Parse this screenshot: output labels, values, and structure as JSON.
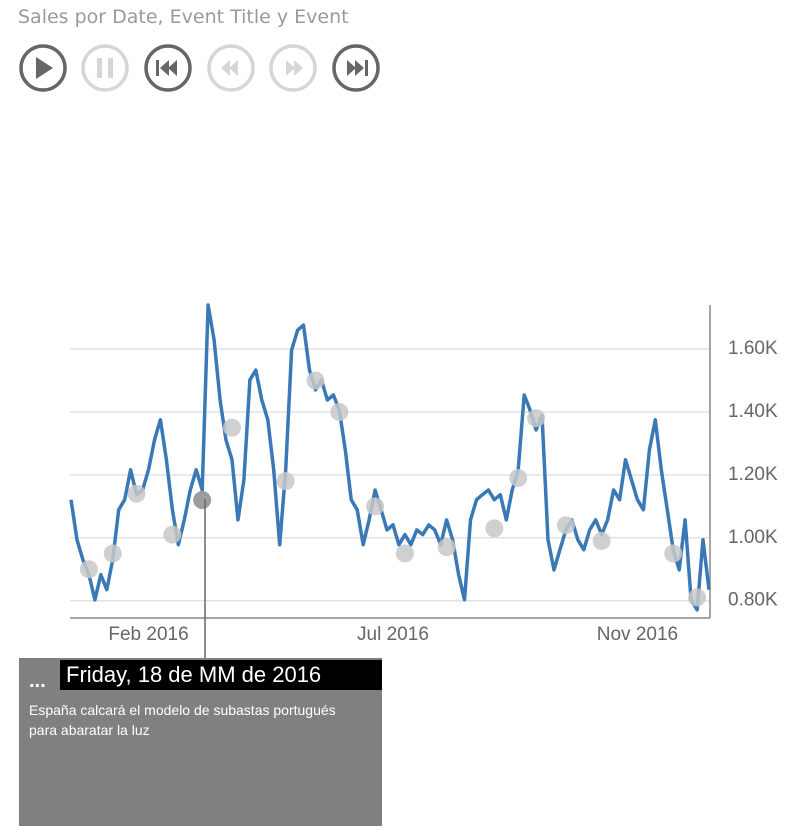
{
  "title": "Sales por Date, Event Title y Event",
  "tooltip": {
    "more": "...",
    "date": "Friday, 18 de MM de 2016",
    "text": "España calcará el modelo de subastas portugués para abaratar la luz"
  },
  "chart_data": {
    "type": "line",
    "categories": [
      null,
      null,
      null,
      null,
      null,
      null,
      null,
      null,
      null,
      null,
      null,
      null,
      null,
      "Feb 2016",
      null,
      null,
      null,
      null,
      null,
      null,
      null,
      null,
      null,
      null,
      null,
      null,
      null,
      null,
      null,
      null,
      null,
      null,
      null,
      null,
      null,
      null,
      null,
      null,
      null,
      null,
      null,
      null,
      null,
      null,
      null,
      null,
      null,
      null,
      null,
      null,
      null,
      null,
      null,
      null,
      "Jul 2016",
      null,
      null,
      null,
      null,
      null,
      null,
      null,
      null,
      null,
      null,
      null,
      null,
      null,
      null,
      null,
      null,
      null,
      null,
      null,
      null,
      null,
      null,
      null,
      null,
      null,
      null,
      null,
      null,
      null,
      null,
      null,
      null,
      null,
      null,
      null,
      null,
      null,
      null,
      null,
      null,
      "Nov 2016",
      null,
      null,
      null,
      null,
      null,
      null,
      null,
      null,
      null,
      null,
      null,
      null
    ],
    "series": [
      {
        "color": "#3a78b6",
        "values": [
          1121,
          994,
          930,
          883,
          803,
          883,
          835,
          930,
          1089,
          1121,
          1216,
          1137,
          1152,
          1216,
          1311,
          1375,
          1248,
          1089,
          978,
          1057,
          1152,
          1216,
          1152,
          1740,
          1629,
          1438,
          1311,
          1248,
          1057,
          1184,
          1502,
          1533,
          1438,
          1375,
          1216,
          978,
          1216,
          1597,
          1660,
          1676,
          1533,
          1470,
          1502,
          1438,
          1454,
          1406,
          1279,
          1121,
          1089,
          978,
          1057,
          1152,
          1089,
          1025,
          1041,
          978,
          1010,
          978,
          1025,
          1010,
          1041,
          1025,
          978,
          1057,
          994,
          883,
          803,
          1057,
          1121,
          1137,
          1152,
          1121,
          1137,
          1057,
          1152,
          1216,
          1454,
          1406,
          1343,
          1390,
          994,
          898,
          962,
          1025,
          1057,
          994,
          962,
          1025,
          1057,
          1010,
          1057,
          1152,
          1121,
          1248,
          1184,
          1121,
          1089,
          1279,
          1375,
          1216,
          1089,
          962,
          898,
          1057,
          803,
          771,
          994,
          835
        ]
      },
      {
        "color": "#c8c8c8",
        "values": [
          null,
          null,
          null,
          900,
          null,
          null,
          null,
          950,
          null,
          null,
          null,
          1140,
          null,
          null,
          null,
          null,
          null,
          1010,
          null,
          null,
          null,
          null,
          null,
          null,
          null,
          null,
          null,
          1350,
          null,
          null,
          null,
          null,
          null,
          null,
          null,
          null,
          1180,
          null,
          null,
          null,
          null,
          1500,
          null,
          null,
          null,
          1400,
          null,
          null,
          null,
          null,
          null,
          1100,
          null,
          null,
          null,
          null,
          950,
          null,
          null,
          null,
          null,
          null,
          null,
          970,
          null,
          null,
          null,
          null,
          null,
          null,
          null,
          1030,
          null,
          null,
          null,
          1190,
          null,
          null,
          1380,
          null,
          null,
          null,
          null,
          1040,
          null,
          null,
          null,
          null,
          null,
          990,
          null,
          null,
          null,
          null,
          null,
          null,
          null,
          null,
          null,
          null,
          null,
          950,
          null,
          null,
          null,
          810,
          null,
          null
        ]
      },
      {
        "color": "#8c8c8c",
        "values": [
          null,
          null,
          null,
          null,
          null,
          null,
          null,
          null,
          null,
          null,
          null,
          null,
          null,
          null,
          null,
          null,
          null,
          null,
          null,
          null,
          null,
          null,
          1120,
          null,
          null,
          null,
          null,
          null,
          null,
          null,
          null,
          null,
          null,
          null,
          null,
          null,
          null,
          null,
          null,
          null,
          null,
          null,
          null,
          null,
          null,
          null,
          null,
          null,
          null,
          null,
          null,
          null,
          null,
          null,
          null,
          null,
          null,
          null,
          null,
          null,
          null,
          null,
          null,
          null,
          null,
          null,
          null,
          null,
          null,
          null,
          null,
          null,
          null,
          null,
          null,
          null,
          null,
          null,
          null,
          null,
          null,
          null,
          null,
          null,
          null,
          null,
          null,
          null,
          null,
          null,
          null,
          null,
          null,
          null,
          null,
          null,
          null,
          null,
          null,
          null,
          null,
          null,
          null,
          null,
          null,
          null,
          null,
          null
        ]
      }
    ],
    "ylim": [
      745,
      1740
    ],
    "yticks": [
      {
        "value": 800,
        "label": "0.80K"
      },
      {
        "value": 1000,
        "label": "1.00K"
      },
      {
        "value": 1200,
        "label": "1.20K"
      },
      {
        "value": 1400,
        "label": "1.40K"
      },
      {
        "value": 1600,
        "label": "1.60K"
      }
    ],
    "grid": true
  }
}
